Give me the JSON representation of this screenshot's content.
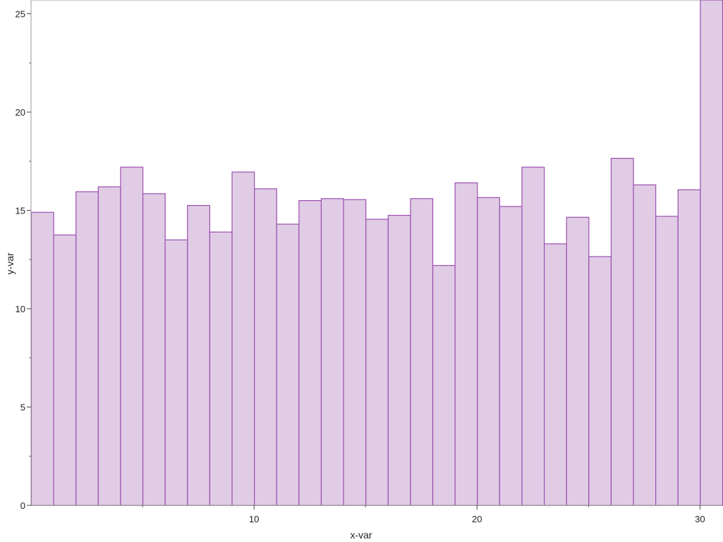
{
  "chart_data": {
    "type": "bar",
    "title": "",
    "xlabel": "x-var",
    "ylabel": "y-var",
    "x": [
      0.5,
      1.5,
      2.5,
      3.5,
      4.5,
      5.5,
      6.5,
      7.5,
      8.5,
      9.5,
      10.5,
      11.5,
      12.5,
      13.5,
      14.5,
      15.5,
      16.5,
      17.5,
      18.5,
      19.5,
      20.5,
      21.5,
      22.5,
      23.5,
      24.5,
      25.5,
      26.5,
      27.5,
      28.5,
      29.5,
      30.5
    ],
    "values": [
      14.9,
      13.75,
      15.95,
      16.2,
      17.2,
      15.85,
      13.5,
      15.25,
      13.9,
      16.95,
      16.1,
      14.3,
      15.5,
      15.6,
      15.55,
      14.55,
      14.75,
      15.6,
      12.2,
      16.4,
      15.65,
      15.2,
      17.2,
      13.3,
      14.65,
      12.65,
      17.65,
      16.3,
      14.7,
      16.05,
      25.7
    ],
    "xlim": [
      0,
      31
    ],
    "ylim": [
      0,
      25.7
    ],
    "xticks": [
      10,
      20,
      30
    ],
    "yticks": [
      0,
      5,
      10,
      15,
      20,
      25
    ],
    "grid": false,
    "colors": {
      "fill": "#e0cce5",
      "stroke": "#9b4fb0",
      "axis": "#999999"
    }
  }
}
